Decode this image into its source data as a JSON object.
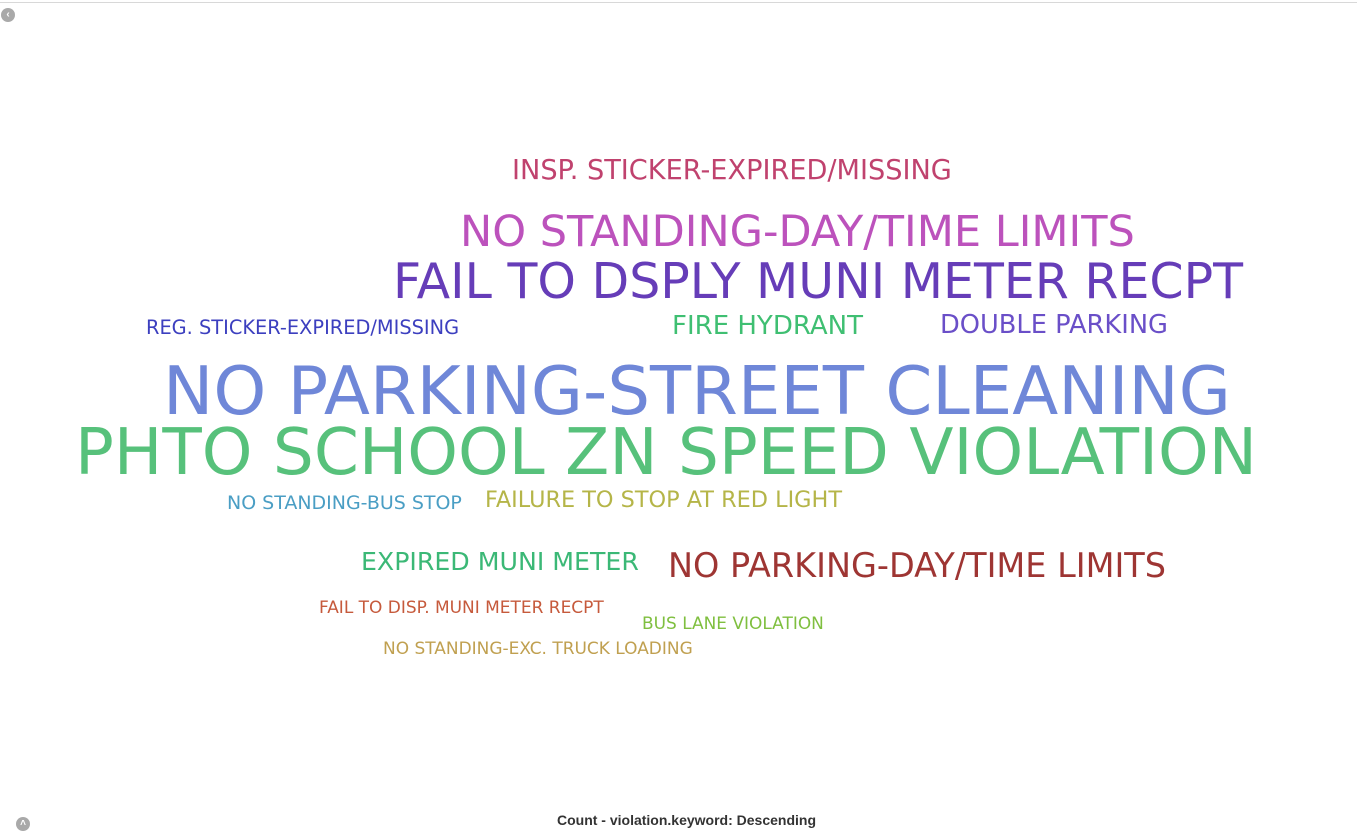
{
  "controls": {
    "collapse_glyph": "‹",
    "expand_glyph": "˄"
  },
  "sort_label": "Count - violation.keyword: Descending",
  "chart_data": {
    "type": "wordcloud",
    "field": "violation.keyword",
    "metric": "Count",
    "order": "Descending",
    "words": [
      {
        "text": "PHTO SCHOOL ZN SPEED VIOLATION",
        "rank": 1,
        "color": "#57c17b"
      },
      {
        "text": "NO PARKING-STREET CLEANING",
        "rank": 2,
        "color": "#6f87d8"
      },
      {
        "text": "FAIL TO DSPLY MUNI METER RECPT",
        "rank": 3,
        "color": "#663db8"
      },
      {
        "text": "NO STANDING-DAY/TIME LIMITS",
        "rank": 4,
        "color": "#bc52bc"
      },
      {
        "text": "NO PARKING-DAY/TIME LIMITS",
        "rank": 5,
        "color": "#9e3533"
      },
      {
        "text": "INSP. STICKER-EXPIRED/MISSING",
        "rank": 6,
        "color": "#c0426e"
      },
      {
        "text": "FIRE HYDRANT",
        "rank": 7,
        "color": "#3fbf72"
      },
      {
        "text": "DOUBLE PARKING",
        "rank": 8,
        "color": "#6a4fc8"
      },
      {
        "text": "EXPIRED MUNI METER",
        "rank": 9,
        "color": "#3bb876"
      },
      {
        "text": "FAILURE TO STOP AT RED LIGHT",
        "rank": 10,
        "color": "#b5b548"
      },
      {
        "text": "REG. STICKER-EXPIRED/MISSING",
        "rank": 11,
        "color": "#3c3fbf"
      },
      {
        "text": "NO STANDING-BUS STOP",
        "rank": 12,
        "color": "#4a9ec4"
      },
      {
        "text": "FAIL TO DISP. MUNI METER RECPT",
        "rank": 13,
        "color": "#c65a3c"
      },
      {
        "text": "BUS LANE VIOLATION",
        "rank": 14,
        "color": "#7fbf3f"
      },
      {
        "text": "NO STANDING-EXC. TRUCK LOADING",
        "rank": 15,
        "color": "#c0a050"
      }
    ]
  }
}
